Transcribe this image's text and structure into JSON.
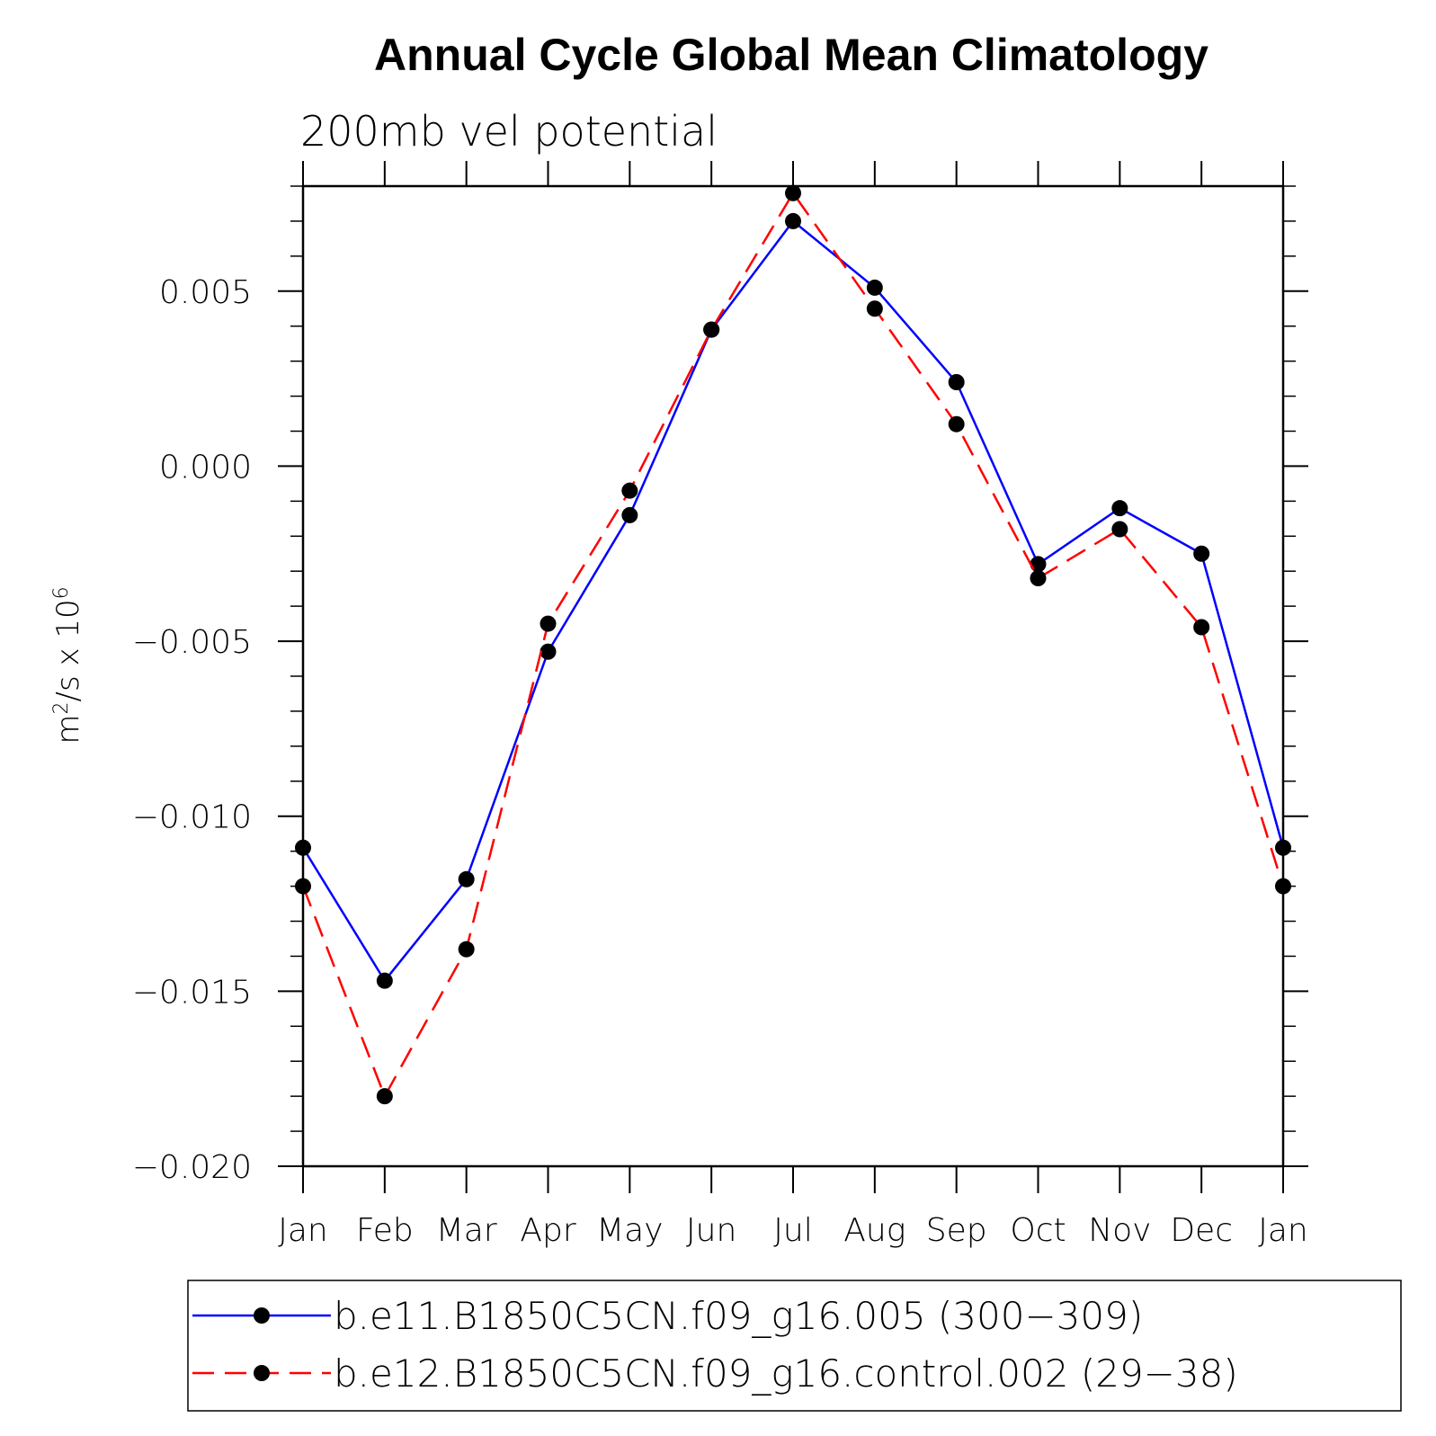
{
  "chart_data": {
    "type": "line",
    "title": "Annual Cycle Global Mean Climatology",
    "subtitle": "200mb vel potential",
    "ylabel": "m²/s x 10⁶",
    "ylabel_parts": {
      "base": "m",
      "sup1": "2",
      "mid": "/s x 10",
      "sup2": "6"
    },
    "xlabel": "",
    "categories": [
      "Jan",
      "Feb",
      "Mar",
      "Apr",
      "May",
      "Jun",
      "Jul",
      "Aug",
      "Sep",
      "Oct",
      "Nov",
      "Dec",
      "Jan"
    ],
    "ylim": [
      -0.02,
      0.008
    ],
    "yticks": [
      -0.02,
      -0.015,
      -0.01,
      -0.005,
      0.0,
      0.005
    ],
    "ytick_labels": [
      "−0.020",
      "−0.015",
      "−0.010",
      "−0.005",
      "0.000",
      "0.005"
    ],
    "grid": false,
    "legend_position": "bottom",
    "series": [
      {
        "name": "b.e11.B1850C5CN.f09_g16.005 (300−309)",
        "color": "#0000ff",
        "style": "solid",
        "marker": "filled-circle",
        "values": [
          -0.0109,
          -0.0147,
          -0.0118,
          -0.0053,
          -0.0014,
          0.0039,
          0.007,
          0.0051,
          0.0024,
          -0.0028,
          -0.0012,
          -0.0025,
          -0.0109
        ]
      },
      {
        "name": "b.e12.B1850C5CN.f09_g16.control.002 (29−38)",
        "color": "#ff0000",
        "style": "dashed",
        "marker": "filled-circle",
        "values": [
          -0.012,
          -0.018,
          -0.0138,
          -0.0045,
          -0.0007,
          0.0039,
          0.0078,
          0.0045,
          0.0012,
          -0.0032,
          -0.0018,
          -0.0046,
          -0.012
        ]
      }
    ]
  }
}
